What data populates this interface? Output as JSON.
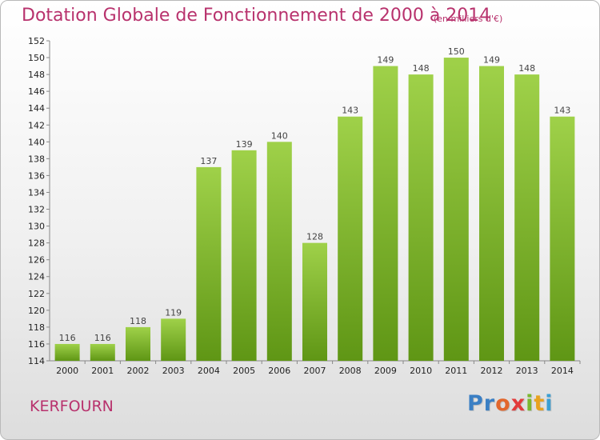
{
  "header": {
    "title": "Dotation Globale de Fonctionnement de 2000 à 2014",
    "unit": "(en milliers d'€)"
  },
  "footer": {
    "commune": "KERFOURN",
    "logo_letters": [
      {
        "char": "P",
        "color": "#3a7fc4"
      },
      {
        "char": "r",
        "color": "#3a7fc4"
      },
      {
        "char": "o",
        "color": "#e2672c"
      },
      {
        "char": "x",
        "color": "#e23b3b"
      },
      {
        "char": "i",
        "color": "#7ab82e"
      },
      {
        "char": "t",
        "color": "#e8a21e"
      },
      {
        "char": "i",
        "color": "#3a9fd4"
      }
    ]
  },
  "chart_data": {
    "type": "bar",
    "title": "Dotation Globale de Fonctionnement de 2000 à 2014",
    "subtitle": "(en milliers d'€)",
    "xlabel": "",
    "ylabel": "",
    "categories": [
      "2000",
      "2001",
      "2002",
      "2003",
      "2004",
      "2005",
      "2006",
      "2007",
      "2008",
      "2009",
      "2010",
      "2011",
      "2012",
      "2013",
      "2014"
    ],
    "values": [
      116,
      116,
      118,
      119,
      137,
      139,
      140,
      128,
      143,
      149,
      148,
      150,
      149,
      148,
      143
    ],
    "data_labels": [
      "116",
      "116",
      "118",
      "119",
      "137",
      "139",
      "140",
      "128",
      "143",
      "149",
      "148",
      "150",
      "149",
      "148",
      "143"
    ],
    "ylim": [
      114,
      152
    ],
    "yticks": [
      114,
      116,
      118,
      120,
      122,
      124,
      126,
      128,
      130,
      132,
      134,
      136,
      138,
      140,
      142,
      144,
      146,
      148,
      150,
      152
    ],
    "grid": false,
    "legend": "none",
    "colors": {
      "bar_light": "#9fd149",
      "bar_dark": "#5f9615",
      "axis": "#888888",
      "text": "#b8326d"
    }
  }
}
